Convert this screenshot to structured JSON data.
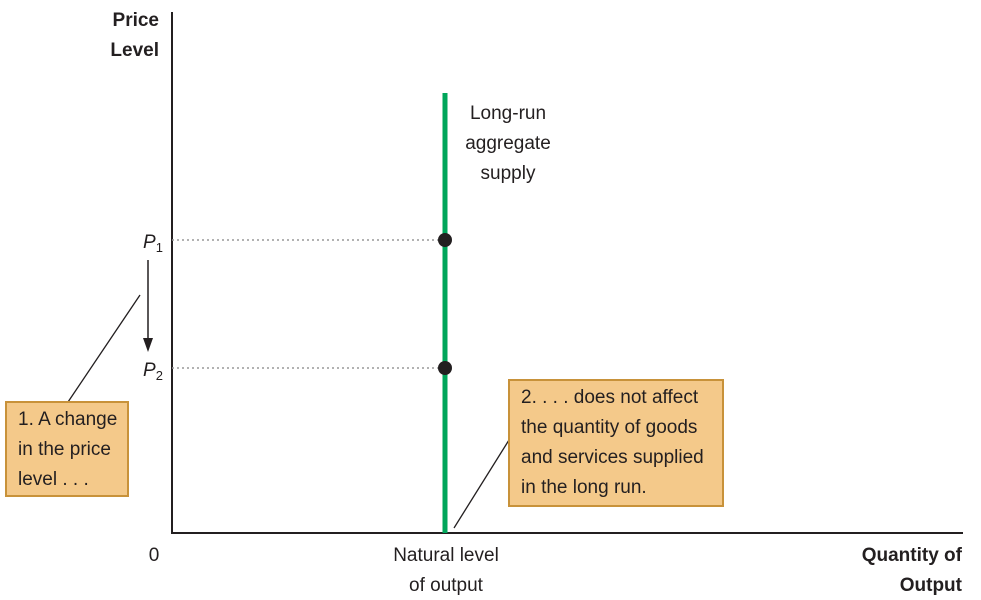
{
  "y_axis": {
    "line1": "Price",
    "line2": "Level"
  },
  "x_axis": {
    "line1": "Quantity of",
    "line2": "Output"
  },
  "origin": "0",
  "x_tick": {
    "line1": "Natural level",
    "line2": "of output"
  },
  "curve_label": {
    "line1": "Long-run",
    "line2": "aggregate",
    "line3": "supply"
  },
  "prices": [
    {
      "letter": "P",
      "sub": "1"
    },
    {
      "letter": "P",
      "sub": "2"
    }
  ],
  "note_1": {
    "lines": [
      "1. A change",
      "in the price",
      "level . . ."
    ]
  },
  "note_2": {
    "lines": [
      "2.  . . . does not affect",
      "the quantity of goods",
      "and services supplied",
      "in the long run."
    ]
  },
  "colors": {
    "curve": "#00a65a",
    "box_fill": "#f4c98a",
    "box_border": "#c8923a",
    "axis": "#231f20",
    "guide": "#999999"
  }
}
